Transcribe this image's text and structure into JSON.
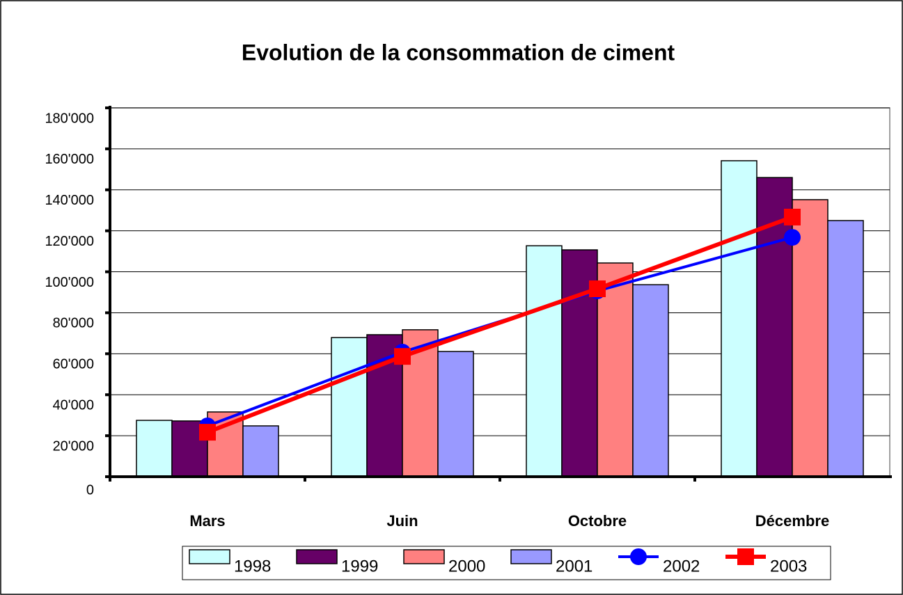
{
  "chart_data": {
    "type": "bar-line",
    "title": "Evolution de la consommation de ciment",
    "categories": [
      "Mars",
      "Juin",
      "Octobre",
      "Décembre"
    ],
    "series": [
      {
        "name": "1998",
        "type": "bar",
        "color": "#ccffff",
        "values": [
          27500,
          67900,
          112700,
          154200
        ]
      },
      {
        "name": "1999",
        "type": "bar",
        "color": "#660066",
        "values": [
          27200,
          69300,
          110700,
          146000
        ]
      },
      {
        "name": "2000",
        "type": "bar",
        "color": "#ff8080",
        "values": [
          31600,
          71700,
          104300,
          135200
        ]
      },
      {
        "name": "2001",
        "type": "bar",
        "color": "#9999ff",
        "values": [
          24800,
          61100,
          93700,
          125000
        ]
      },
      {
        "name": "2002",
        "type": "line",
        "marker": "circle",
        "color": "#0000ff",
        "values": [
          24800,
          60800,
          90700,
          116800
        ]
      },
      {
        "name": "2003",
        "type": "line",
        "marker": "square",
        "color": "#ff0000",
        "values": [
          21700,
          58700,
          91700,
          126700
        ]
      }
    ],
    "ylim": [
      0,
      180000
    ],
    "yticks": [
      0,
      {
        "value": 20000,
        "label": "20'000"
      },
      {
        "value": 40000,
        "label": "40'000"
      },
      {
        "value": 60000,
        "label": "60'000"
      },
      {
        "value": 80000,
        "label": "80'000"
      },
      {
        "value": 100000,
        "label": "100'000"
      },
      {
        "value": 120000,
        "label": "120'000"
      },
      {
        "value": 140000,
        "label": "140'000"
      },
      {
        "value": 160000,
        "label": "160'000"
      },
      {
        "value": 180000,
        "label": "180'000"
      }
    ],
    "grid": true,
    "legend": "bottom"
  }
}
